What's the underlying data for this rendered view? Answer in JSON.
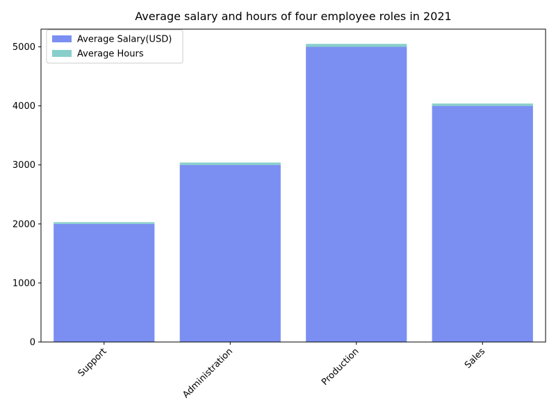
{
  "chart_data": {
    "type": "bar",
    "title": "Average salary and hours of four employee roles in 2021",
    "categories": [
      "Support",
      "Administration",
      "Production",
      "Sales"
    ],
    "series": [
      {
        "name": "Average Salary(USD)",
        "values": [
          2000,
          3000,
          5000,
          4000
        ],
        "color": "#7b8ff2"
      },
      {
        "name": "Average Hours",
        "values": [
          30,
          40,
          50,
          40
        ],
        "color": "#88cfcb"
      }
    ],
    "stacked": true,
    "ylim": [
      0,
      5300
    ],
    "yticks": [
      0,
      1000,
      2000,
      3000,
      4000,
      5000
    ],
    "xlabel": "",
    "ylabel": "",
    "legend_position": "top-left",
    "grid": false
  }
}
